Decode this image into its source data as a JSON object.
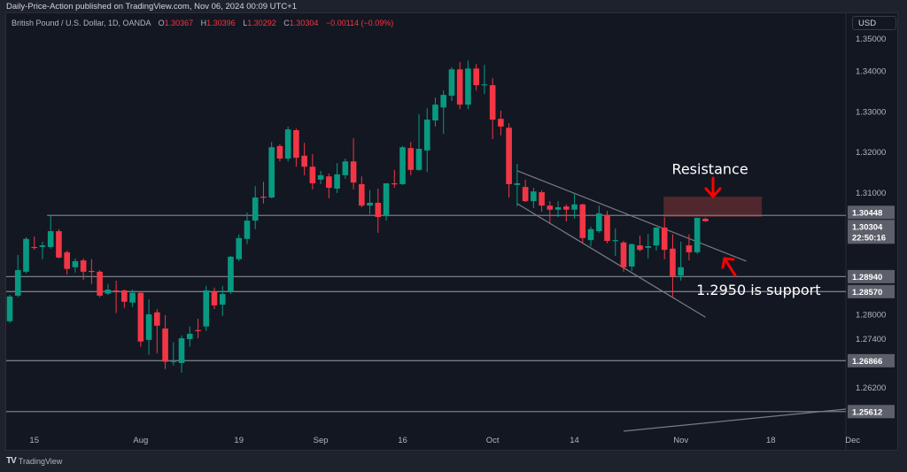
{
  "header": {
    "published": "Daily-Price-Action published on TradingView.com, Nov 06, 2024 00:09 UTC+1",
    "symbol": "British Pound / U.S. Dollar, 1D, OANDA",
    "ohlc": {
      "o_label": "O",
      "o": "1.30367",
      "h_label": "H",
      "h": "1.30396",
      "l_label": "L",
      "l": "1.30292",
      "c_label": "C",
      "c": "1.30304",
      "change": "−0.00114 (−0.09%)"
    },
    "currency_button": "USD"
  },
  "footer": {
    "brand": "TradingView"
  },
  "colors": {
    "up": "#089981",
    "down": "#f23645",
    "background": "#131722",
    "level_line": "#787b86",
    "resistance_zone": "#5c2a2e",
    "annotation_arrow": "#ff0000"
  },
  "chart_data": {
    "type": "candlestick",
    "title": "",
    "xlabel": "",
    "ylabel": "",
    "ylim": [
      1.2505,
      1.3525
    ],
    "grid": false,
    "y_ticks": [
      "1.35000",
      "1.34000",
      "1.33000",
      "1.32000",
      "1.31000",
      "1.28000",
      "1.27400",
      "1.26200"
    ],
    "y_tick_values": [
      1.35,
      1.34,
      1.33,
      1.32,
      1.31,
      1.28,
      1.274,
      1.262
    ],
    "x_ticks": [
      {
        "label": "15",
        "bar": 3
      },
      {
        "label": "Aug",
        "bar": 16
      },
      {
        "label": "19",
        "bar": 28
      },
      {
        "label": "Sep",
        "bar": 38
      },
      {
        "label": "16",
        "bar": 48
      },
      {
        "label": "Oct",
        "bar": 59
      },
      {
        "label": "14",
        "bar": 69
      },
      {
        "label": "Nov",
        "bar": 82
      },
      {
        "label": "18",
        "bar": 93
      },
      {
        "label": "Dec",
        "bar": 103
      }
    ],
    "candles_ohlc": [
      [
        1.2784,
        1.2849,
        1.278,
        1.2845
      ],
      [
        1.2847,
        1.2947,
        1.2843,
        1.291
      ],
      [
        1.2906,
        1.2991,
        1.2902,
        1.2987
      ],
      [
        1.2967,
        1.2993,
        1.296,
        1.2965
      ],
      [
        1.2967,
        1.298,
        1.2937,
        1.2971
      ],
      [
        1.2967,
        1.3043,
        1.2963,
        1.3006
      ],
      [
        1.3006,
        1.3011,
        1.2939,
        1.2941
      ],
      [
        1.2954,
        1.2958,
        1.2899,
        1.2913
      ],
      [
        1.2917,
        1.2939,
        1.2904,
        1.2932
      ],
      [
        1.2934,
        1.2939,
        1.2886,
        1.2906
      ],
      [
        1.2908,
        1.2937,
        1.2876,
        1.2906
      ],
      [
        1.2906,
        1.291,
        1.2843,
        1.2847
      ],
      [
        1.2852,
        1.2876,
        1.2849,
        1.2862
      ],
      [
        1.286,
        1.2884,
        1.2804,
        1.2858
      ],
      [
        1.286,
        1.2862,
        1.2817,
        1.2832
      ],
      [
        1.283,
        1.2862,
        1.2819,
        1.2854
      ],
      [
        1.2854,
        1.2858,
        1.2721,
        1.2734
      ],
      [
        1.2738,
        1.2838,
        1.2701,
        1.2801
      ],
      [
        1.2806,
        1.2814,
        1.2705,
        1.2773
      ],
      [
        1.2766,
        1.2799,
        1.2666,
        1.2684
      ],
      [
        1.2684,
        1.2732,
        1.2675,
        1.2686
      ],
      [
        1.2681,
        1.2749,
        1.2657,
        1.2742
      ],
      [
        1.274,
        1.2771,
        1.2721,
        1.2753
      ],
      [
        1.2762,
        1.279,
        1.2742,
        1.276
      ],
      [
        1.2771,
        1.2871,
        1.276,
        1.286
      ],
      [
        1.2856,
        1.2867,
        1.2814,
        1.2823
      ],
      [
        1.2825,
        1.2871,
        1.2797,
        1.2851
      ],
      [
        1.2856,
        1.2945,
        1.2851,
        1.2943
      ],
      [
        1.2937,
        1.2998,
        1.2932,
        1.2989
      ],
      [
        1.2987,
        1.3052,
        1.2974,
        1.3032
      ],
      [
        1.3032,
        1.3117,
        1.3011,
        1.3089
      ],
      [
        1.3091,
        1.3128,
        1.3074,
        1.3089
      ],
      [
        1.3089,
        1.3226,
        1.3087,
        1.3213
      ],
      [
        1.3216,
        1.322,
        1.3178,
        1.3185
      ],
      [
        1.3185,
        1.3264,
        1.3178,
        1.3257
      ],
      [
        1.3255,
        1.3259,
        1.3165,
        1.3187
      ],
      [
        1.3192,
        1.3224,
        1.3144,
        1.3165
      ],
      [
        1.3165,
        1.3196,
        1.3109,
        1.3124
      ],
      [
        1.3133,
        1.3155,
        1.3122,
        1.3144
      ],
      [
        1.3141,
        1.3148,
        1.3087,
        1.3113
      ],
      [
        1.3111,
        1.3174,
        1.31,
        1.3146
      ],
      [
        1.3144,
        1.3185,
        1.3135,
        1.3178
      ],
      [
        1.3178,
        1.3235,
        1.3109,
        1.3126
      ],
      [
        1.3122,
        1.3141,
        1.3065,
        1.3069
      ],
      [
        1.3069,
        1.3107,
        1.3048,
        1.3076
      ],
      [
        1.3076,
        1.3111,
        1.3002,
        1.3041
      ],
      [
        1.3043,
        1.3124,
        1.3032,
        1.3124
      ],
      [
        1.3124,
        1.3157,
        1.3113,
        1.3122
      ],
      [
        1.3122,
        1.3216,
        1.312,
        1.3213
      ],
      [
        1.3211,
        1.3226,
        1.3144,
        1.3157
      ],
      [
        1.3157,
        1.3294,
        1.3155,
        1.3209
      ],
      [
        1.3205,
        1.3309,
        1.3152,
        1.3281
      ],
      [
        1.3279,
        1.3335,
        1.3264,
        1.3318
      ],
      [
        1.3311,
        1.3353,
        1.3246,
        1.3342
      ],
      [
        1.334,
        1.341,
        1.3327,
        1.3405
      ],
      [
        1.3405,
        1.3423,
        1.3307,
        1.3318
      ],
      [
        1.3318,
        1.3427,
        1.3307,
        1.3407
      ],
      [
        1.3407,
        1.3418,
        1.3353,
        1.3366
      ],
      [
        1.3366,
        1.3416,
        1.3344,
        1.3368
      ],
      [
        1.3366,
        1.3383,
        1.3233,
        1.3281
      ],
      [
        1.3283,
        1.3303,
        1.3242,
        1.3264
      ],
      [
        1.3261,
        1.3272,
        1.3089,
        1.3122
      ],
      [
        1.312,
        1.3172,
        1.3067,
        1.3124
      ],
      [
        1.3115,
        1.3133,
        1.3078,
        1.308
      ],
      [
        1.308,
        1.3113,
        1.3063,
        1.3104
      ],
      [
        1.3102,
        1.3107,
        1.3054,
        1.3069
      ],
      [
        1.3069,
        1.308,
        1.3024,
        1.3059
      ],
      [
        1.3059,
        1.308,
        1.3041,
        1.3065
      ],
      [
        1.3067,
        1.3072,
        1.303,
        1.3059
      ],
      [
        1.3059,
        1.31,
        1.3037,
        1.3072
      ],
      [
        1.3072,
        1.3074,
        1.2976,
        1.2989
      ],
      [
        1.2984,
        1.3017,
        1.2969,
        1.3011
      ],
      [
        1.3006,
        1.3069,
        1.3002,
        1.305
      ],
      [
        1.3046,
        1.3056,
        1.2976,
        1.2982
      ],
      [
        1.2982,
        1.3013,
        1.2945,
        1.2984
      ],
      [
        1.2978,
        1.2982,
        1.2906,
        1.2917
      ],
      [
        1.2919,
        1.2976,
        1.2908,
        1.2974
      ],
      [
        1.2971,
        1.2995,
        1.2956,
        1.296
      ],
      [
        1.2965,
        1.2999,
        1.2939,
        1.2969
      ],
      [
        1.2971,
        1.3015,
        1.2958,
        1.3015
      ],
      [
        1.3015,
        1.3041,
        1.2937,
        1.296
      ],
      [
        1.2963,
        1.2998,
        1.2845,
        1.2895
      ],
      [
        1.2897,
        1.298,
        1.2884,
        1.2917
      ],
      [
        1.2971,
        1.2998,
        1.2934,
        1.2954
      ],
      [
        1.2954,
        1.3039,
        1.295,
        1.3039
      ],
      [
        1.30367,
        1.30396,
        1.30292,
        1.30304
      ]
    ],
    "horizontal_levels": [
      {
        "price": 1.30448,
        "label": "1.30448",
        "from_bar": 5
      },
      {
        "price": 1.2894,
        "label": "1.28940",
        "from_bar": 0
      },
      {
        "price": 1.2857,
        "label": "1.28570",
        "from_bar": 0
      },
      {
        "price": 1.26866,
        "label": "1.26866",
        "from_bar": 0
      },
      {
        "price": 1.25612,
        "label": "1.25612",
        "from_bar": 0
      }
    ],
    "last_price": {
      "label": "1.30304",
      "countdown": "22:50:16"
    },
    "trend_lines": [
      {
        "from": [
          62,
          1.3155
        ],
        "to": [
          90,
          1.2932
        ]
      },
      {
        "from": [
          62,
          1.3074
        ],
        "to": [
          85,
          1.2794
        ]
      },
      {
        "from": [
          75,
          1.2513
        ],
        "to": [
          102.5,
          1.2568
        ]
      }
    ],
    "resistance_zone": {
      "from_bar": 80,
      "to_bar": 92,
      "top": 1.3091,
      "bottom": 1.3041
    },
    "annotations": [
      {
        "text": "Resistance",
        "bar": 81,
        "price": 1.316
      },
      {
        "text": "1.2950 is support",
        "bar": 84,
        "price": 1.2862
      }
    ]
  }
}
